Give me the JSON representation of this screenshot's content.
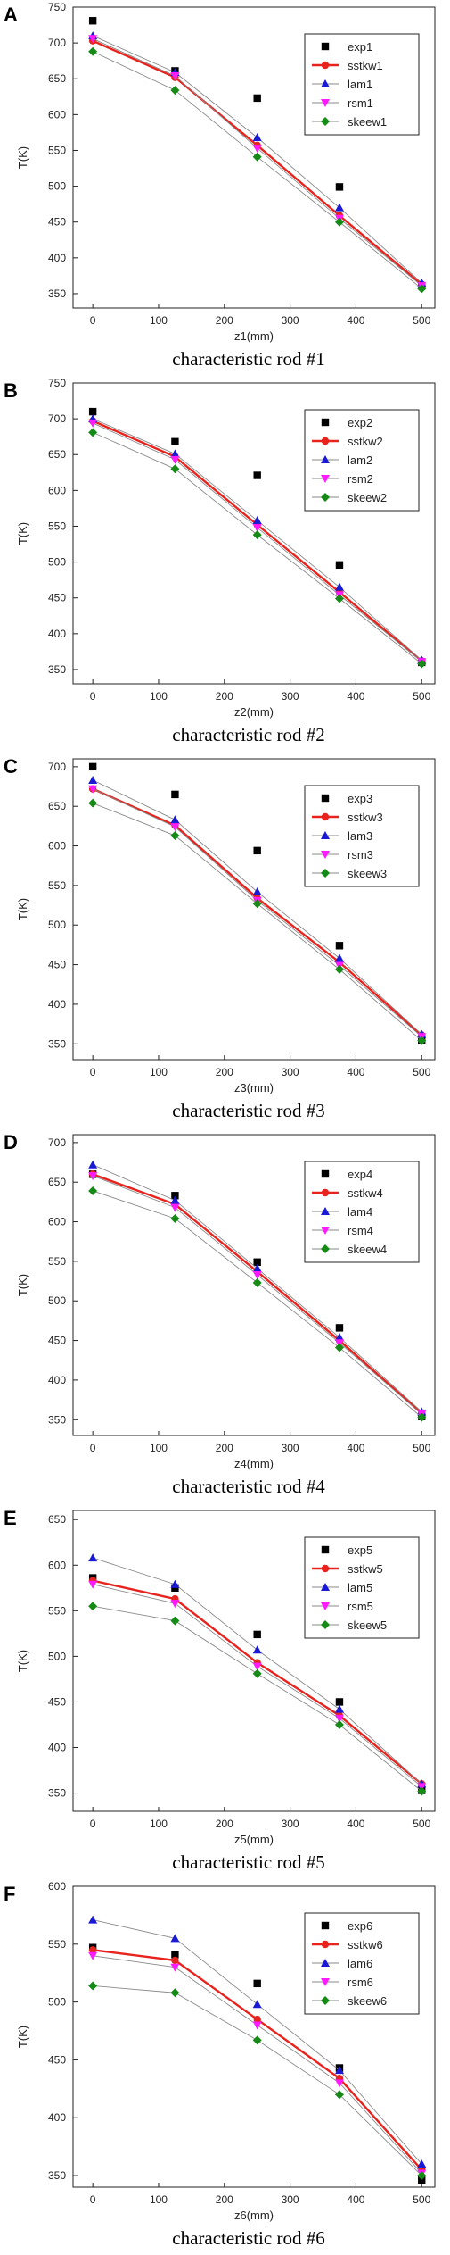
{
  "chart_data": [
    {
      "panel": "A",
      "type": "line",
      "caption": "characteristic rod #1",
      "xlabel": "z1(mm)",
      "ylabel": "T(K)",
      "xlim": [
        -30,
        520
      ],
      "ylim": [
        330,
        750
      ],
      "xticks": [
        0,
        100,
        200,
        300,
        400,
        500
      ],
      "yticks": [
        350,
        400,
        450,
        500,
        550,
        600,
        650,
        700,
        750
      ],
      "x": [
        0,
        125,
        250,
        375,
        500
      ],
      "series": [
        {
          "name": "exp1",
          "values": [
            731,
            661,
            623,
            499,
            361
          ]
        },
        {
          "name": "sstkw1",
          "values": [
            703,
            652,
            557,
            459,
            363
          ]
        },
        {
          "name": "lam1",
          "values": [
            710,
            659,
            568,
            470,
            365
          ]
        },
        {
          "name": "rsm1",
          "values": [
            706,
            654,
            553,
            455,
            361
          ]
        },
        {
          "name": "skeew1",
          "values": [
            688,
            634,
            541,
            450,
            357
          ]
        }
      ]
    },
    {
      "panel": "B",
      "type": "line",
      "caption": "characteristic rod #2",
      "xlabel": "z2(mm)",
      "ylabel": "T(K)",
      "xlim": [
        -30,
        520
      ],
      "ylim": [
        330,
        750
      ],
      "xticks": [
        0,
        100,
        200,
        300,
        400,
        500
      ],
      "yticks": [
        350,
        400,
        450,
        500,
        550,
        600,
        650,
        700,
        750
      ],
      "x": [
        0,
        125,
        250,
        375,
        500
      ],
      "series": [
        {
          "name": "exp2",
          "values": [
            710,
            668,
            621,
            496,
            360
          ]
        },
        {
          "name": "sstkw2",
          "values": [
            697,
            647,
            552,
            458,
            362
          ]
        },
        {
          "name": "lam2",
          "values": [
            700,
            651,
            558,
            465,
            363
          ]
        },
        {
          "name": "rsm2",
          "values": [
            694,
            643,
            548,
            454,
            361
          ]
        },
        {
          "name": "skeew2",
          "values": [
            681,
            630,
            538,
            449,
            358
          ]
        }
      ]
    },
    {
      "panel": "C",
      "type": "line",
      "caption": "characteristic rod #3",
      "xlabel": "z3(mm)",
      "ylabel": "T(K)",
      "xlim": [
        -30,
        520
      ],
      "ylim": [
        330,
        710
      ],
      "xticks": [
        0,
        100,
        200,
        300,
        400,
        500
      ],
      "yticks": [
        350,
        400,
        450,
        500,
        550,
        600,
        650,
        700
      ],
      "x": [
        0,
        125,
        250,
        375,
        500
      ],
      "series": [
        {
          "name": "exp3",
          "values": [
            700,
            665,
            594,
            474,
            354
          ]
        },
        {
          "name": "sstkw3",
          "values": [
            672,
            626,
            534,
            453,
            361
          ]
        },
        {
          "name": "lam3",
          "values": [
            683,
            633,
            542,
            458,
            362
          ]
        },
        {
          "name": "rsm3",
          "values": [
            672,
            624,
            531,
            449,
            359
          ]
        },
        {
          "name": "skeew3",
          "values": [
            654,
            613,
            527,
            444,
            354
          ]
        }
      ]
    },
    {
      "panel": "D",
      "type": "line",
      "caption": "characteristic rod #4",
      "xlabel": "z4(mm)",
      "ylabel": "T(K)",
      "xlim": [
        -30,
        520
      ],
      "ylim": [
        330,
        710
      ],
      "xticks": [
        0,
        100,
        200,
        300,
        400,
        500
      ],
      "yticks": [
        350,
        400,
        450,
        500,
        550,
        600,
        650,
        700
      ],
      "x": [
        0,
        125,
        250,
        375,
        500
      ],
      "series": [
        {
          "name": "exp4",
          "values": [
            660,
            633,
            549,
            466,
            354
          ]
        },
        {
          "name": "sstkw4",
          "values": [
            660,
            622,
            537,
            450,
            358
          ]
        },
        {
          "name": "lam4",
          "values": [
            672,
            627,
            541,
            454,
            360
          ]
        },
        {
          "name": "rsm4",
          "values": [
            658,
            618,
            533,
            447,
            357
          ]
        },
        {
          "name": "skeew4",
          "values": [
            639,
            604,
            523,
            441,
            353
          ]
        }
      ]
    },
    {
      "panel": "E",
      "type": "line",
      "caption": "characteristic rod #5",
      "xlabel": "z5(mm)",
      "ylabel": "T(K)",
      "xlim": [
        -30,
        520
      ],
      "ylim": [
        330,
        660
      ],
      "xticks": [
        0,
        100,
        200,
        300,
        400,
        500
      ],
      "yticks": [
        350,
        400,
        450,
        500,
        550,
        600,
        650
      ],
      "x": [
        0,
        125,
        250,
        375,
        500
      ],
      "series": [
        {
          "name": "exp5",
          "values": [
            586,
            575,
            524,
            450,
            353
          ]
        },
        {
          "name": "sstkw5",
          "values": [
            583,
            563,
            493,
            435,
            360
          ]
        },
        {
          "name": "lam5",
          "values": [
            608,
            579,
            507,
            442,
            360
          ]
        },
        {
          "name": "rsm5",
          "values": [
            579,
            558,
            489,
            432,
            357
          ]
        },
        {
          "name": "skeew5",
          "values": [
            555,
            539,
            481,
            425,
            352
          ]
        }
      ]
    },
    {
      "panel": "F",
      "type": "line",
      "caption": "characteristic rod #6",
      "xlabel": "z6(mm)",
      "ylabel": "T(K)",
      "xlim": [
        -30,
        520
      ],
      "ylim": [
        340,
        600
      ],
      "xticks": [
        0,
        100,
        200,
        300,
        400,
        500
      ],
      "yticks": [
        350,
        400,
        450,
        500,
        550,
        600
      ],
      "x": [
        0,
        125,
        250,
        375,
        500
      ],
      "series": [
        {
          "name": "exp6",
          "values": [
            547,
            541,
            516,
            443,
            346
          ]
        },
        {
          "name": "sstkw6",
          "values": [
            545,
            536,
            485,
            434,
            355
          ]
        },
        {
          "name": "lam6",
          "values": [
            571,
            555,
            498,
            441,
            360
          ]
        },
        {
          "name": "rsm6",
          "values": [
            540,
            530,
            480,
            430,
            352
          ]
        },
        {
          "name": "skeew6",
          "values": [
            514,
            508,
            467,
            420,
            350
          ]
        }
      ]
    }
  ],
  "styles": {
    "colors": [
      "#000000",
      "#e8231e",
      "#1a1ad6",
      "#ff1aff",
      "#168a16"
    ],
    "markers": [
      "square",
      "circle",
      "triangle-up",
      "triangle-down",
      "diamond"
    ],
    "legend_placement": "top-right",
    "grid": false
  }
}
